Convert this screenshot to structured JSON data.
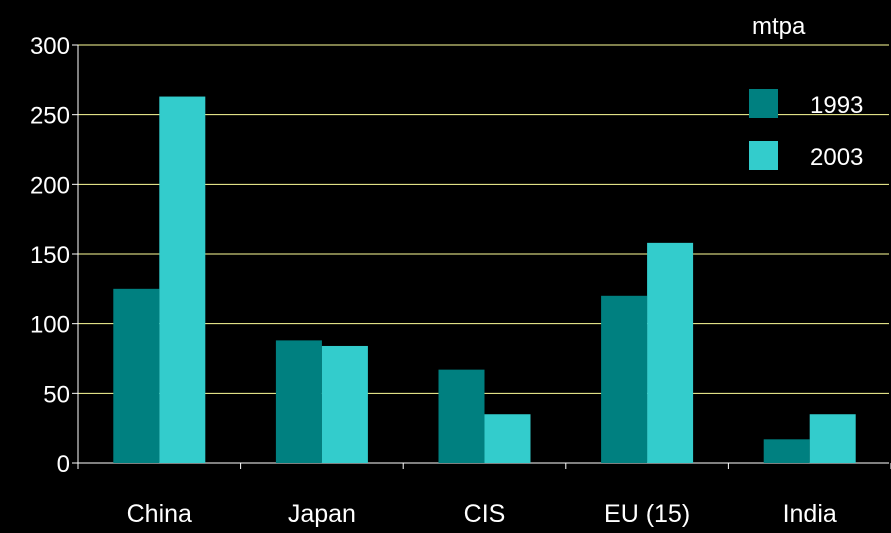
{
  "chart_data": {
    "type": "bar",
    "categories": [
      "China",
      "Japan",
      "CIS",
      "EU (15)",
      "India"
    ],
    "series": [
      {
        "name": "1993",
        "values": [
          125,
          88,
          67,
          120,
          17
        ],
        "color": "#008080"
      },
      {
        "name": "2003",
        "values": [
          263,
          84,
          35,
          158,
          35
        ],
        "color": "#33cccc"
      }
    ],
    "yticks": [
      "0",
      "50",
      "100",
      "150",
      "200",
      "250",
      "300"
    ],
    "ylim": [
      0,
      300
    ],
    "unit_label": "mtpa",
    "grid": true,
    "legend_position": "top-right",
    "colors": {
      "background": "#000000",
      "axis": "#ffffff",
      "grid": "#ffff99",
      "text": "#ffffff"
    }
  }
}
